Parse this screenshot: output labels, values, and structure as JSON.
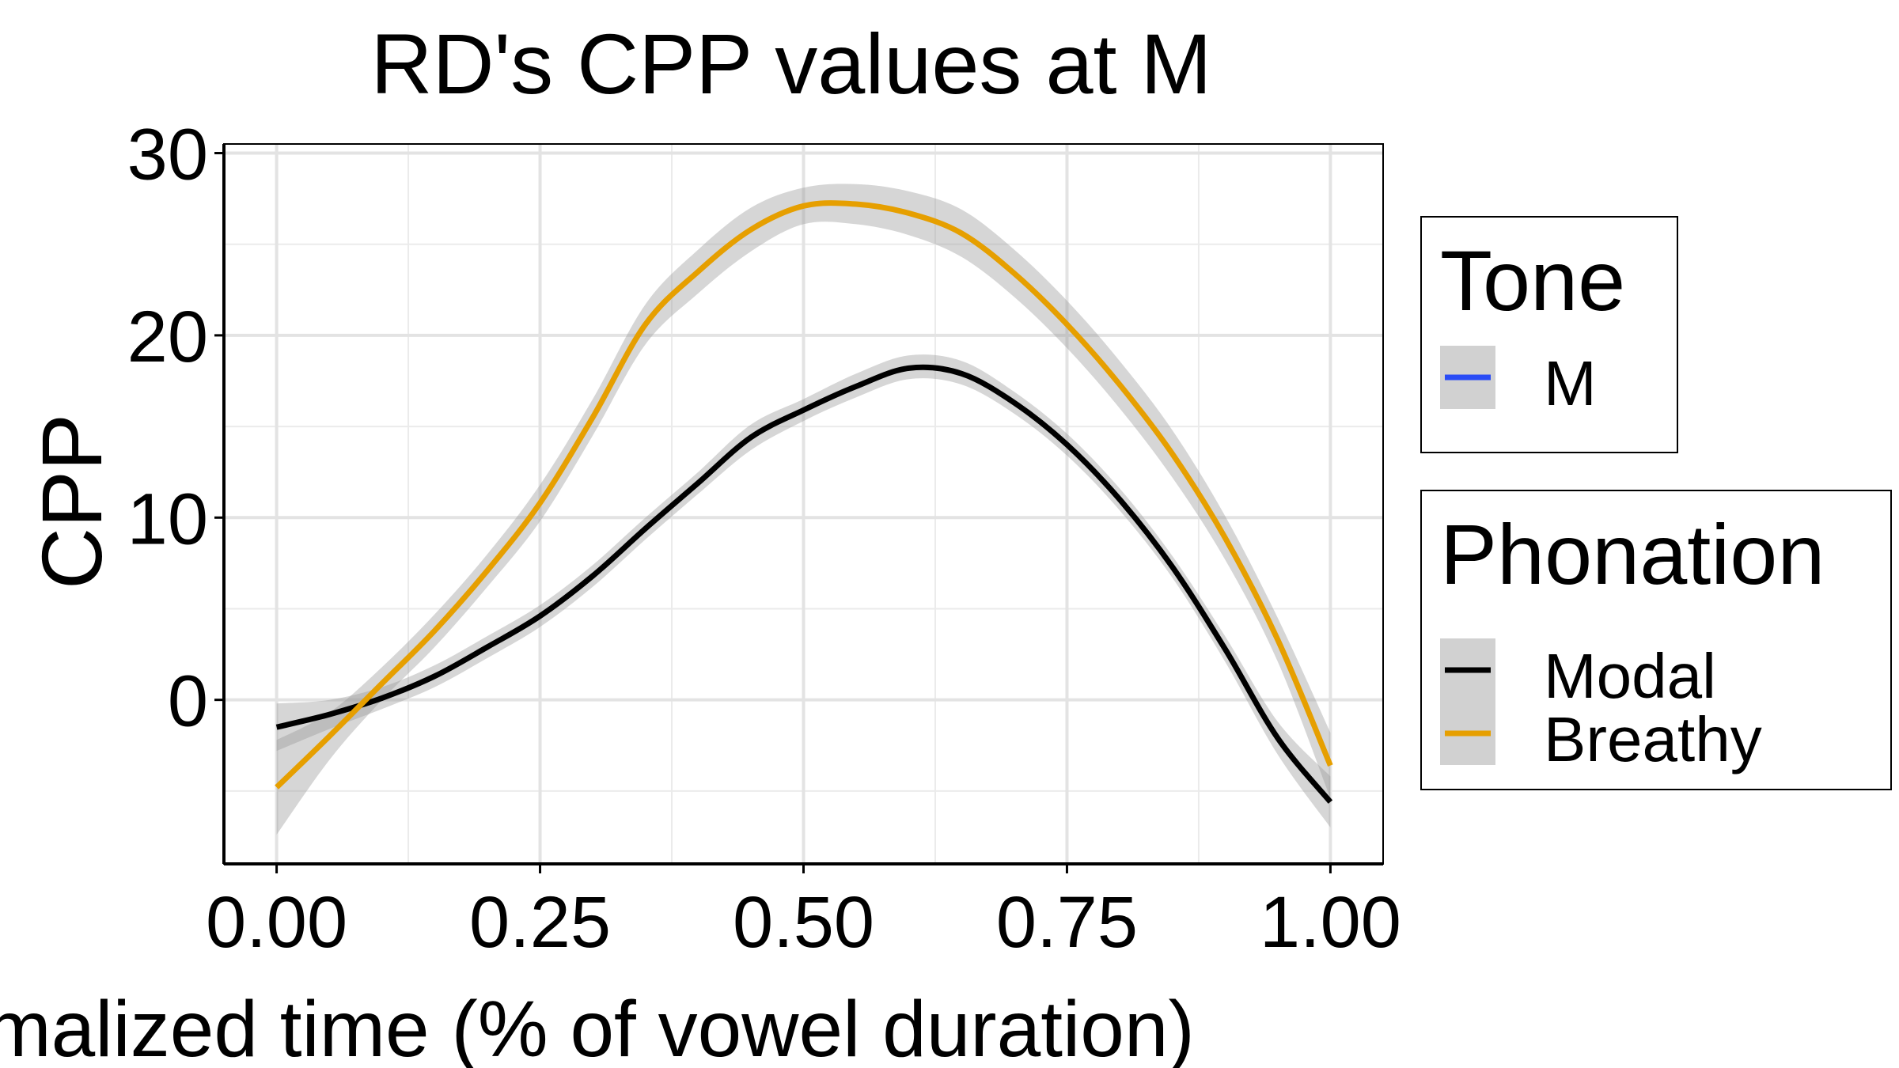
{
  "chart_data": {
    "type": "line",
    "title": "RD's CPP values at M",
    "xlabel": "Normalized time (% of vowel duration)",
    "ylabel": "CPP",
    "xlim": [
      -0.05,
      1.05
    ],
    "ylim": [
      -9,
      30.5
    ],
    "x_ticks": [
      0.0,
      0.25,
      0.5,
      0.75,
      1.0
    ],
    "x_tick_labels": [
      "0.00",
      "0.25",
      "0.50",
      "0.75",
      "1.00"
    ],
    "y_ticks": [
      0,
      10,
      20,
      30
    ],
    "y_tick_labels": [
      "0",
      "10",
      "20",
      "30"
    ],
    "grid": true,
    "legend_position": "right",
    "legends": [
      {
        "title": "Tone",
        "entries": [
          {
            "label": "M",
            "color": "#2a4cf5"
          }
        ]
      },
      {
        "title": "Phonation",
        "entries": [
          {
            "label": "Modal",
            "color": "#000000"
          },
          {
            "label": "Breathy",
            "color": "#e69f00"
          }
        ]
      }
    ],
    "series": [
      {
        "name": "Modal",
        "color": "#000000",
        "x": [
          0.0,
          0.05,
          0.1,
          0.15,
          0.2,
          0.25,
          0.3,
          0.35,
          0.4,
          0.45,
          0.5,
          0.55,
          0.6,
          0.65,
          0.7,
          0.75,
          0.8,
          0.85,
          0.9,
          0.95,
          1.0
        ],
        "y": [
          -1.5,
          -0.8,
          0.1,
          1.3,
          2.9,
          4.6,
          6.8,
          9.4,
          11.9,
          14.4,
          15.9,
          17.2,
          18.2,
          17.9,
          16.3,
          14.0,
          11.0,
          7.3,
          2.8,
          -2.1,
          -5.6
        ],
        "ci_lower": [
          -2.8,
          -1.6,
          -0.5,
          0.7,
          2.3,
          4.0,
          6.2,
          8.8,
          11.3,
          13.7,
          15.3,
          16.6,
          17.6,
          17.3,
          15.7,
          13.4,
          10.4,
          6.7,
          2.1,
          -3.0,
          -7.0
        ],
        "ci_upper": [
          -0.2,
          0.0,
          0.7,
          1.9,
          3.5,
          5.2,
          7.4,
          10.0,
          12.5,
          15.1,
          16.5,
          17.9,
          18.9,
          18.6,
          16.9,
          14.6,
          11.6,
          7.9,
          3.5,
          -1.2,
          -4.2
        ]
      },
      {
        "name": "Breathy",
        "color": "#e69f00",
        "x": [
          0.0,
          0.05,
          0.1,
          0.15,
          0.2,
          0.25,
          0.3,
          0.35,
          0.4,
          0.45,
          0.5,
          0.55,
          0.6,
          0.65,
          0.7,
          0.75,
          0.8,
          0.85,
          0.9,
          0.95,
          1.0
        ],
        "y": [
          -4.8,
          -2.0,
          0.9,
          3.8,
          7.1,
          10.8,
          15.5,
          20.6,
          23.5,
          25.8,
          27.1,
          27.2,
          26.7,
          25.6,
          23.4,
          20.6,
          17.3,
          13.5,
          8.9,
          3.3,
          -3.6
        ],
        "ci_lower": [
          -7.4,
          -3.3,
          0.0,
          2.9,
          6.2,
          9.8,
          14.5,
          19.5,
          22.3,
          24.6,
          26.1,
          26.1,
          25.5,
          24.3,
          22.1,
          19.3,
          16.0,
          12.2,
          7.7,
          2.1,
          -5.4
        ],
        "ci_upper": [
          -2.2,
          -0.7,
          1.8,
          4.7,
          8.0,
          11.8,
          16.5,
          21.7,
          24.7,
          27.0,
          28.1,
          28.3,
          27.9,
          26.9,
          24.7,
          21.9,
          18.6,
          14.8,
          10.1,
          4.5,
          -1.8
        ]
      }
    ]
  }
}
